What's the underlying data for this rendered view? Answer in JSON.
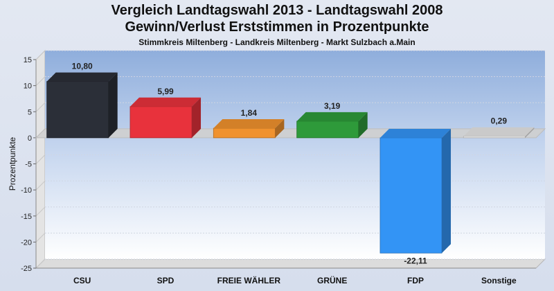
{
  "chart_data": {
    "type": "bar",
    "title": "Vergleich Landtagswahl 2013 - Landtagswahl 2008",
    "subtitle": "Gewinn/Verlust Erststimmen in Prozentpunkte",
    "caption": "Stimmkreis Miltenberg - Landkreis Miltenberg - Markt Sulzbach a.Main",
    "xlabel": "",
    "ylabel": "Prozentpunkte",
    "ylim": [
      -25,
      15
    ],
    "yticks": [
      15,
      10,
      5,
      0,
      -5,
      -10,
      -15,
      -20,
      -25
    ],
    "categories": [
      "CSU",
      "SPD",
      "FREIE WÄHLER",
      "GRÜNE",
      "FDP",
      "Sonstige"
    ],
    "values": [
      10.8,
      5.99,
      1.84,
      3.19,
      -22.11,
      0.29
    ],
    "value_labels": [
      "10,80",
      "5,99",
      "1,84",
      "3,19",
      "-22,11",
      "0,29"
    ],
    "colors": [
      "#2b2f38",
      "#e8323c",
      "#f0922e",
      "#2e9a3a",
      "#3394f5",
      "#e6e6e6"
    ],
    "grid": true,
    "legend": "none"
  }
}
